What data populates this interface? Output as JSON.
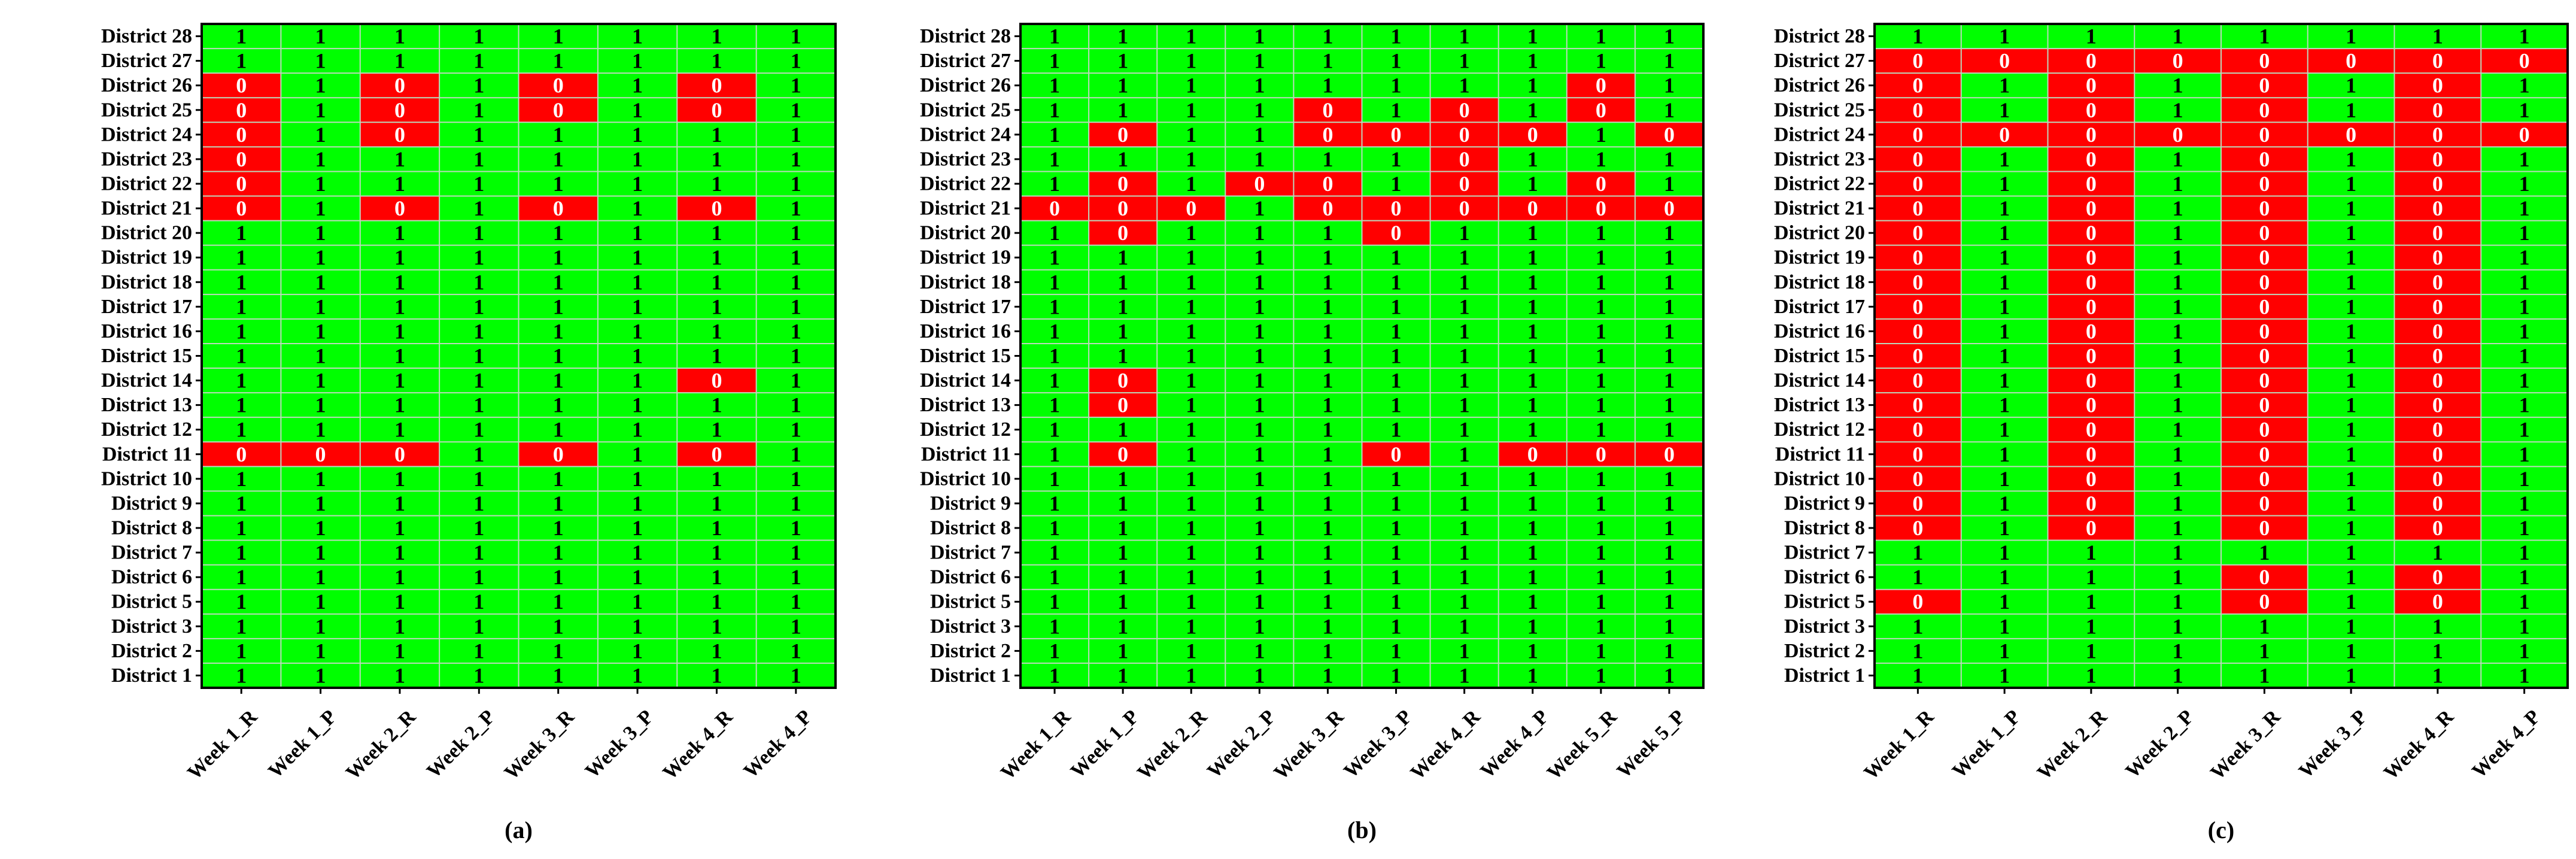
{
  "colors": {
    "one": "#00ff00",
    "zero": "#ff0000",
    "one_text": "#000000",
    "zero_text": "#ffffff",
    "grid": "#bcd9bc",
    "frame": "#000000"
  },
  "chart_data": [
    {
      "type": "heatmap",
      "panel_label": "(a)",
      "rows": [
        "District 28",
        "District 27",
        "District 26",
        "District 25",
        "District 24",
        "District 23",
        "District 22",
        "District 21",
        "District 20",
        "District 19",
        "District 18",
        "District 17",
        "District 16",
        "District 15",
        "District 14",
        "District 13",
        "District 12",
        "District 11",
        "District 10",
        "District 9",
        "District 8",
        "District 7",
        "District 6",
        "District 5",
        "District 3",
        "District 2",
        "District 1"
      ],
      "columns": [
        "Week 1_R",
        "Week 1_P",
        "Week 2_R",
        "Week 2_P",
        "Week 3_R",
        "Week 3_P",
        "Week 4_R",
        "Week 4_P"
      ],
      "values": [
        [
          1,
          1,
          1,
          1,
          1,
          1,
          1,
          1
        ],
        [
          1,
          1,
          1,
          1,
          1,
          1,
          1,
          1
        ],
        [
          0,
          1,
          0,
          1,
          0,
          1,
          0,
          1
        ],
        [
          0,
          1,
          0,
          1,
          0,
          1,
          0,
          1
        ],
        [
          0,
          1,
          0,
          1,
          1,
          1,
          1,
          1
        ],
        [
          0,
          1,
          1,
          1,
          1,
          1,
          1,
          1
        ],
        [
          0,
          1,
          1,
          1,
          1,
          1,
          1,
          1
        ],
        [
          0,
          1,
          0,
          1,
          0,
          1,
          0,
          1
        ],
        [
          1,
          1,
          1,
          1,
          1,
          1,
          1,
          1
        ],
        [
          1,
          1,
          1,
          1,
          1,
          1,
          1,
          1
        ],
        [
          1,
          1,
          1,
          1,
          1,
          1,
          1,
          1
        ],
        [
          1,
          1,
          1,
          1,
          1,
          1,
          1,
          1
        ],
        [
          1,
          1,
          1,
          1,
          1,
          1,
          1,
          1
        ],
        [
          1,
          1,
          1,
          1,
          1,
          1,
          1,
          1
        ],
        [
          1,
          1,
          1,
          1,
          1,
          1,
          0,
          1
        ],
        [
          1,
          1,
          1,
          1,
          1,
          1,
          1,
          1
        ],
        [
          1,
          1,
          1,
          1,
          1,
          1,
          1,
          1
        ],
        [
          0,
          0,
          0,
          1,
          0,
          1,
          0,
          1
        ],
        [
          1,
          1,
          1,
          1,
          1,
          1,
          1,
          1
        ],
        [
          1,
          1,
          1,
          1,
          1,
          1,
          1,
          1
        ],
        [
          1,
          1,
          1,
          1,
          1,
          1,
          1,
          1
        ],
        [
          1,
          1,
          1,
          1,
          1,
          1,
          1,
          1
        ],
        [
          1,
          1,
          1,
          1,
          1,
          1,
          1,
          1
        ],
        [
          1,
          1,
          1,
          1,
          1,
          1,
          1,
          1
        ],
        [
          1,
          1,
          1,
          1,
          1,
          1,
          1,
          1
        ],
        [
          1,
          1,
          1,
          1,
          1,
          1,
          1,
          1
        ],
        [
          1,
          1,
          1,
          1,
          1,
          1,
          1,
          1
        ]
      ]
    },
    {
      "type": "heatmap",
      "panel_label": "(b)",
      "rows": [
        "District 28",
        "District 27",
        "District 26",
        "District 25",
        "District 24",
        "District 23",
        "District 22",
        "District 21",
        "District 20",
        "District 19",
        "District 18",
        "District 17",
        "District 16",
        "District 15",
        "District 14",
        "District 13",
        "District 12",
        "District 11",
        "District 10",
        "District 9",
        "District 8",
        "District 7",
        "District 6",
        "District 5",
        "District 3",
        "District 2",
        "District 1"
      ],
      "columns": [
        "Week 1_R",
        "Week 1_P",
        "Week 2_R",
        "Week 2_P",
        "Week 3_R",
        "Week 3_P",
        "Week 4_R",
        "Week 4_P",
        "Week 5_R",
        "Week 5_P"
      ],
      "values": [
        [
          1,
          1,
          1,
          1,
          1,
          1,
          1,
          1,
          1,
          1
        ],
        [
          1,
          1,
          1,
          1,
          1,
          1,
          1,
          1,
          1,
          1
        ],
        [
          1,
          1,
          1,
          1,
          1,
          1,
          1,
          1,
          0,
          1
        ],
        [
          1,
          1,
          1,
          1,
          0,
          1,
          0,
          1,
          0,
          1
        ],
        [
          1,
          0,
          1,
          1,
          0,
          0,
          0,
          0,
          1,
          0
        ],
        [
          1,
          1,
          1,
          1,
          1,
          1,
          0,
          1,
          1,
          1
        ],
        [
          1,
          0,
          1,
          0,
          0,
          1,
          0,
          1,
          0,
          1
        ],
        [
          0,
          0,
          0,
          1,
          0,
          0,
          0,
          0,
          0,
          0
        ],
        [
          1,
          0,
          1,
          1,
          1,
          0,
          1,
          1,
          1,
          1
        ],
        [
          1,
          1,
          1,
          1,
          1,
          1,
          1,
          1,
          1,
          1
        ],
        [
          1,
          1,
          1,
          1,
          1,
          1,
          1,
          1,
          1,
          1
        ],
        [
          1,
          1,
          1,
          1,
          1,
          1,
          1,
          1,
          1,
          1
        ],
        [
          1,
          1,
          1,
          1,
          1,
          1,
          1,
          1,
          1,
          1
        ],
        [
          1,
          1,
          1,
          1,
          1,
          1,
          1,
          1,
          1,
          1
        ],
        [
          1,
          0,
          1,
          1,
          1,
          1,
          1,
          1,
          1,
          1
        ],
        [
          1,
          0,
          1,
          1,
          1,
          1,
          1,
          1,
          1,
          1
        ],
        [
          1,
          1,
          1,
          1,
          1,
          1,
          1,
          1,
          1,
          1
        ],
        [
          1,
          0,
          1,
          1,
          1,
          0,
          1,
          0,
          0,
          0
        ],
        [
          1,
          1,
          1,
          1,
          1,
          1,
          1,
          1,
          1,
          1
        ],
        [
          1,
          1,
          1,
          1,
          1,
          1,
          1,
          1,
          1,
          1
        ],
        [
          1,
          1,
          1,
          1,
          1,
          1,
          1,
          1,
          1,
          1
        ],
        [
          1,
          1,
          1,
          1,
          1,
          1,
          1,
          1,
          1,
          1
        ],
        [
          1,
          1,
          1,
          1,
          1,
          1,
          1,
          1,
          1,
          1
        ],
        [
          1,
          1,
          1,
          1,
          1,
          1,
          1,
          1,
          1,
          1
        ],
        [
          1,
          1,
          1,
          1,
          1,
          1,
          1,
          1,
          1,
          1
        ],
        [
          1,
          1,
          1,
          1,
          1,
          1,
          1,
          1,
          1,
          1
        ],
        [
          1,
          1,
          1,
          1,
          1,
          1,
          1,
          1,
          1,
          1
        ]
      ]
    },
    {
      "type": "heatmap",
      "panel_label": "(c)",
      "rows": [
        "District 28",
        "District 27",
        "District 26",
        "District 25",
        "District 24",
        "District 23",
        "District 22",
        "District 21",
        "District 20",
        "District 19",
        "District 18",
        "District 17",
        "District 16",
        "District 15",
        "District 14",
        "District 13",
        "District 12",
        "District 11",
        "District 10",
        "District 9",
        "District 8",
        "District 7",
        "District 6",
        "District 5",
        "District 3",
        "District 2",
        "District 1"
      ],
      "columns": [
        "Week 1_R",
        "Week 1_P",
        "Week 2_R",
        "Week 2_P",
        "Week 3_R",
        "Week 3_P",
        "Week 4_R",
        "Week 4_P"
      ],
      "values": [
        [
          1,
          1,
          1,
          1,
          1,
          1,
          1,
          1
        ],
        [
          0,
          0,
          0,
          0,
          0,
          0,
          0,
          0
        ],
        [
          0,
          1,
          0,
          1,
          0,
          1,
          0,
          1
        ],
        [
          0,
          1,
          0,
          1,
          0,
          1,
          0,
          1
        ],
        [
          0,
          0,
          0,
          0,
          0,
          0,
          0,
          0
        ],
        [
          0,
          1,
          0,
          1,
          0,
          1,
          0,
          1
        ],
        [
          0,
          1,
          0,
          1,
          0,
          1,
          0,
          1
        ],
        [
          0,
          1,
          0,
          1,
          0,
          1,
          0,
          1
        ],
        [
          0,
          1,
          0,
          1,
          0,
          1,
          0,
          1
        ],
        [
          0,
          1,
          0,
          1,
          0,
          1,
          0,
          1
        ],
        [
          0,
          1,
          0,
          1,
          0,
          1,
          0,
          1
        ],
        [
          0,
          1,
          0,
          1,
          0,
          1,
          0,
          1
        ],
        [
          0,
          1,
          0,
          1,
          0,
          1,
          0,
          1
        ],
        [
          0,
          1,
          0,
          1,
          0,
          1,
          0,
          1
        ],
        [
          0,
          1,
          0,
          1,
          0,
          1,
          0,
          1
        ],
        [
          0,
          1,
          0,
          1,
          0,
          1,
          0,
          1
        ],
        [
          0,
          1,
          0,
          1,
          0,
          1,
          0,
          1
        ],
        [
          0,
          1,
          0,
          1,
          0,
          1,
          0,
          1
        ],
        [
          0,
          1,
          0,
          1,
          0,
          1,
          0,
          1
        ],
        [
          0,
          1,
          0,
          1,
          0,
          1,
          0,
          1
        ],
        [
          0,
          1,
          0,
          1,
          0,
          1,
          0,
          1
        ],
        [
          1,
          1,
          1,
          1,
          1,
          1,
          1,
          1
        ],
        [
          1,
          1,
          1,
          1,
          0,
          1,
          0,
          1
        ],
        [
          0,
          1,
          1,
          1,
          0,
          1,
          0,
          1
        ],
        [
          1,
          1,
          1,
          1,
          1,
          1,
          1,
          1
        ],
        [
          1,
          1,
          1,
          1,
          1,
          1,
          1,
          1
        ],
        [
          1,
          1,
          1,
          1,
          1,
          1,
          1,
          1
        ]
      ]
    }
  ]
}
